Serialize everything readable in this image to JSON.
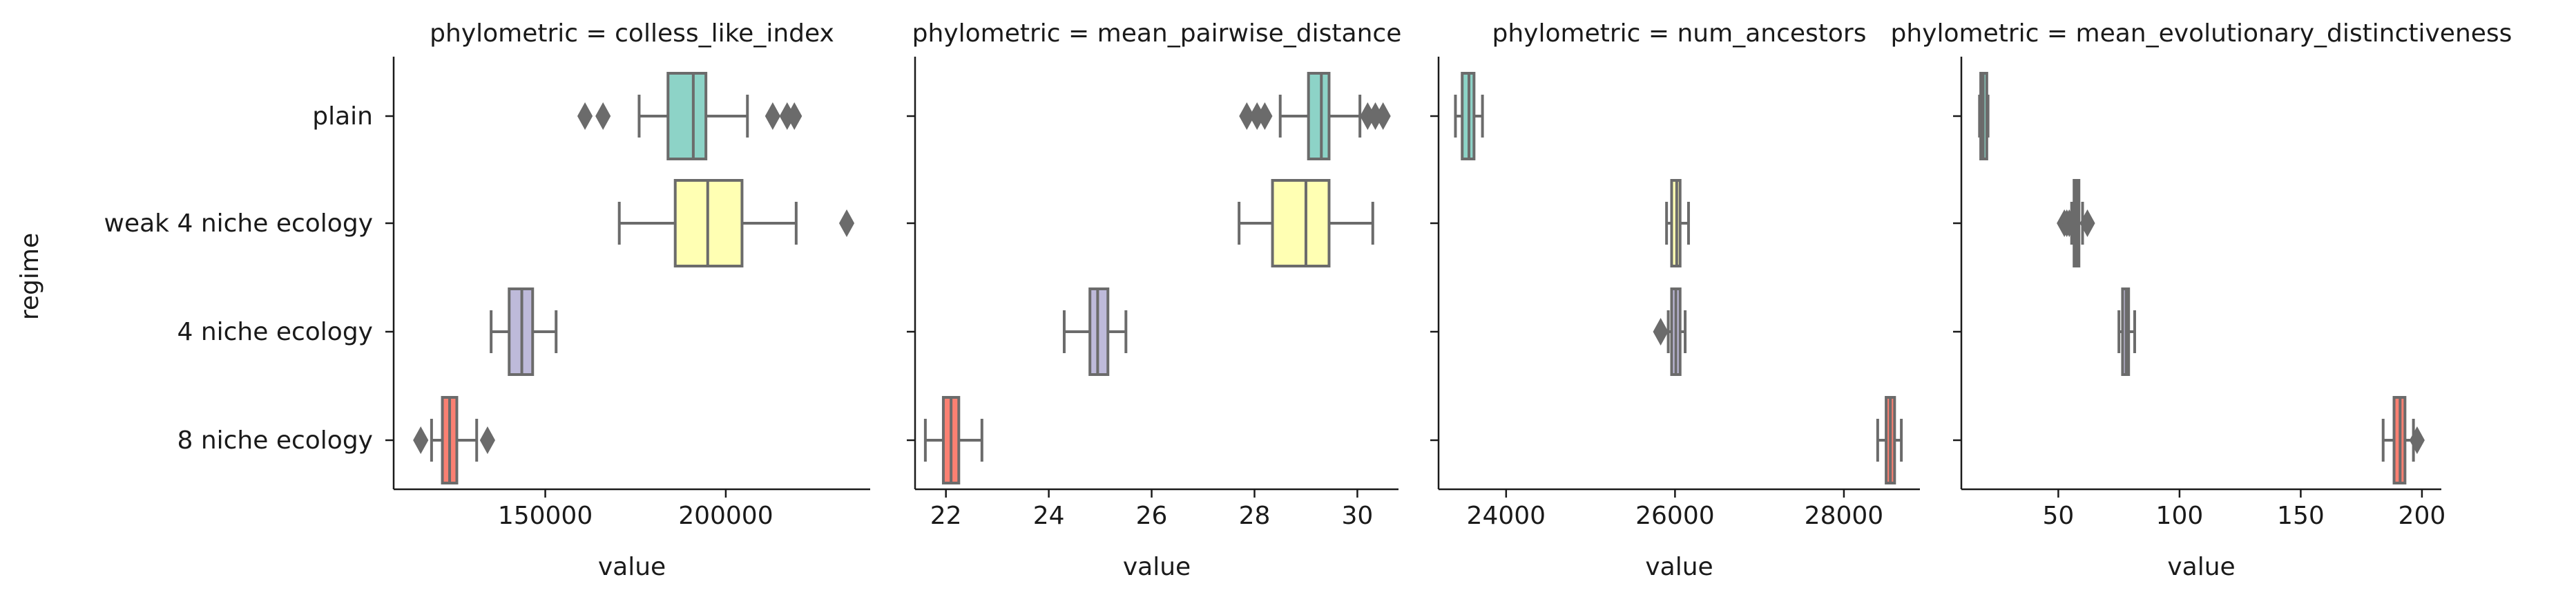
{
  "figure": {
    "ylabel": "regime",
    "categories": [
      "plain",
      "weak 4 niche ecology",
      "4 niche ecology",
      "8 niche ecology"
    ],
    "colors": [
      "#8dd3c7",
      "#ffffb3",
      "#bebada",
      "#fb8072"
    ],
    "stroke_color": "#6b6b6b"
  },
  "chart_data": [
    {
      "type": "box",
      "title": "phylometric = colless_like_index",
      "xlabel": "value",
      "xlim": [
        108000,
        240000
      ],
      "xticks": [
        150000,
        200000
      ],
      "xtick_labels": [
        "150000",
        "200000"
      ],
      "series": [
        {
          "category": "plain",
          "whislo": 176000,
          "q1": 184000,
          "median": 191000,
          "q3": 194500,
          "whishi": 206000,
          "fliers": [
            161000,
            166000,
            213000,
            217000,
            219000
          ]
        },
        {
          "category": "weak 4 niche ecology",
          "whislo": 170500,
          "q1": 186000,
          "median": 195000,
          "q3": 204500,
          "whishi": 219500,
          "fliers": [
            233500
          ]
        },
        {
          "category": "4 niche ecology",
          "whislo": 135000,
          "q1": 140000,
          "median": 143500,
          "q3": 146500,
          "whishi": 153000,
          "fliers": []
        },
        {
          "category": "8 niche ecology",
          "whislo": 118500,
          "q1": 121500,
          "median": 123500,
          "q3": 125500,
          "whishi": 131000,
          "fliers": [
            115500,
            134000
          ]
        }
      ]
    },
    {
      "type": "box",
      "title": "phylometric = mean_pairwise_distance",
      "xlabel": "value",
      "xlim": [
        21.4,
        30.8
      ],
      "xticks": [
        22,
        24,
        26,
        28,
        30
      ],
      "xtick_labels": [
        "22",
        "24",
        "26",
        "28",
        "30"
      ],
      "series": [
        {
          "category": "plain",
          "whislo": 28.5,
          "q1": 29.05,
          "median": 29.3,
          "q3": 29.45,
          "whishi": 30.05,
          "fliers": [
            27.85,
            28.05,
            28.2,
            30.2,
            30.35,
            30.5
          ]
        },
        {
          "category": "weak 4 niche ecology",
          "whislo": 27.7,
          "q1": 28.35,
          "median": 29.0,
          "q3": 29.45,
          "whishi": 30.3,
          "fliers": []
        },
        {
          "category": "4 niche ecology",
          "whislo": 24.3,
          "q1": 24.8,
          "median": 24.95,
          "q3": 25.15,
          "whishi": 25.5,
          "fliers": []
        },
        {
          "category": "8 niche ecology",
          "whislo": 21.6,
          "q1": 21.95,
          "median": 22.1,
          "q3": 22.25,
          "whishi": 22.7,
          "fliers": []
        }
      ]
    },
    {
      "type": "box",
      "title": "phylometric = num_ancestors",
      "xlabel": "value",
      "xlim": [
        23200,
        28900
      ],
      "xticks": [
        24000,
        26000,
        28000
      ],
      "xtick_labels": [
        "24000",
        "26000",
        "28000"
      ],
      "series": [
        {
          "category": "plain",
          "whislo": 23400,
          "q1": 23480,
          "median": 23560,
          "q3": 23620,
          "whishi": 23720,
          "fliers": []
        },
        {
          "category": "weak 4 niche ecology",
          "whislo": 25900,
          "q1": 25960,
          "median": 26020,
          "q3": 26060,
          "whishi": 26160,
          "fliers": []
        },
        {
          "category": "4 niche ecology",
          "whislo": 25920,
          "q1": 25960,
          "median": 26010,
          "q3": 26060,
          "whishi": 26120,
          "fliers": [
            25830
          ]
        },
        {
          "category": "8 niche ecology",
          "whislo": 28400,
          "q1": 28500,
          "median": 28550,
          "q3": 28600,
          "whishi": 28680,
          "fliers": []
        }
      ]
    },
    {
      "type": "box",
      "title": "phylometric = mean_evolutionary_distinctiveness",
      "xlabel": "value",
      "xlim": [
        10,
        208
      ],
      "xticks": [
        50,
        100,
        150,
        200
      ],
      "xtick_labels": [
        "50",
        "100",
        "150",
        "200"
      ],
      "series": [
        {
          "category": "plain",
          "whislo": 17.5,
          "q1": 18.0,
          "median": 19.0,
          "q3": 20.5,
          "whishi": 21.0,
          "fliers": []
        },
        {
          "category": "weak 4 niche ecology",
          "whislo": 55.5,
          "q1": 56.5,
          "median": 57.5,
          "q3": 58.5,
          "whishi": 60.0,
          "fliers": [
            52.5,
            53.5,
            54.5,
            62.0
          ]
        },
        {
          "category": "4 niche ecology",
          "whislo": 75.0,
          "q1": 76.5,
          "median": 78.0,
          "q3": 79.0,
          "whishi": 81.5,
          "fliers": []
        },
        {
          "category": "8 niche ecology",
          "whislo": 184.0,
          "q1": 188.5,
          "median": 191.0,
          "q3": 193.0,
          "whishi": 196.5,
          "fliers": [
            198.0
          ]
        }
      ]
    }
  ]
}
